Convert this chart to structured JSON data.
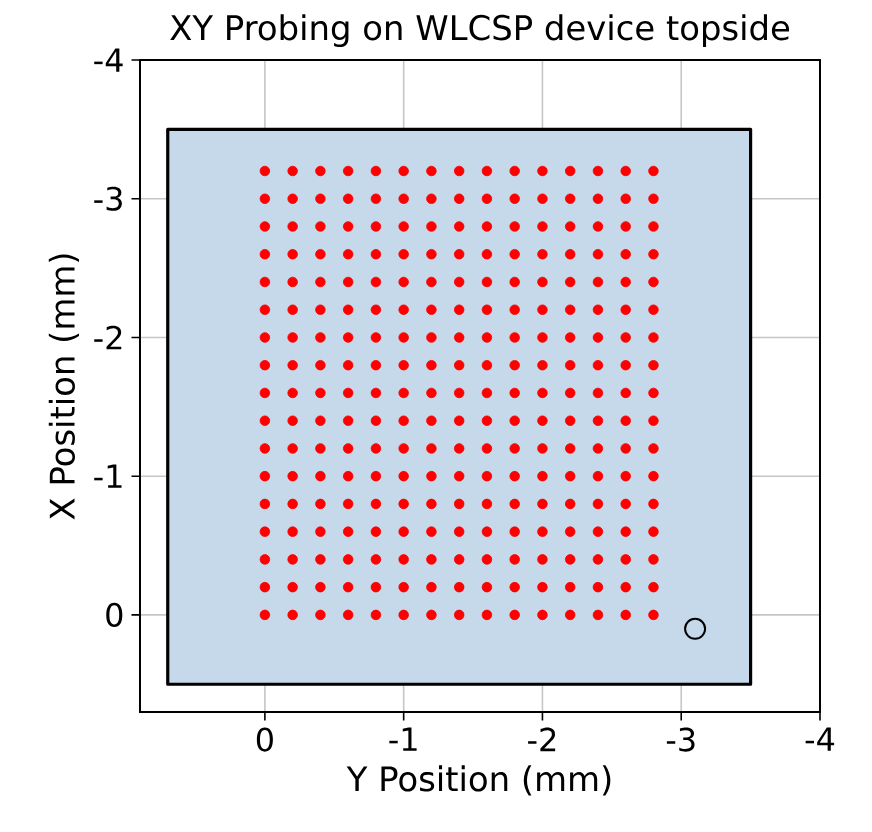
{
  "chart_data": {
    "type": "scatter",
    "title": "XY Probing on WLCSP device topside",
    "xlabel": "Y Position (mm)",
    "ylabel": "X Position (mm)",
    "xlim": [
      0.9,
      -4
    ],
    "ylim": [
      0.7,
      -4
    ],
    "xticks": [
      0,
      -1,
      -2,
      -3,
      -4
    ],
    "yticks": [
      0,
      -1,
      -2,
      -3,
      -4
    ],
    "grid": true,
    "series": [
      {
        "type": "area",
        "color": "#c5d9ea",
        "x": [
          0.7,
          -3.5,
          -3.5,
          0.7
        ],
        "values": [
          -3.5,
          -3.5,
          0.5,
          0.5
        ]
      },
      {
        "color": "#ff0000",
        "marker": "circle",
        "x": [
          0,
          -0.2,
          -0.4,
          -0.6,
          -0.8,
          -1,
          -1.2,
          -1.4,
          -1.6,
          -1.8,
          -2,
          -2.2,
          -2.4,
          -2.6,
          -2.8,
          0,
          -0.2,
          -0.4,
          -0.6,
          -0.8,
          -1,
          -1.2,
          -1.4,
          -1.6,
          -1.8,
          -2,
          -2.2,
          -2.4,
          -2.6,
          -2.8,
          0,
          -0.2,
          -0.4,
          -0.6,
          -0.8,
          -1,
          -1.2,
          -1.4,
          -1.6,
          -1.8,
          -2,
          -2.2,
          -2.4,
          -2.6,
          -2.8,
          0,
          -0.2,
          -0.4,
          -0.6,
          -0.8,
          -1,
          -1.2,
          -1.4,
          -1.6,
          -1.8,
          -2,
          -2.2,
          -2.4,
          -2.6,
          -2.8,
          0,
          -0.2,
          -0.4,
          -0.6,
          -0.8,
          -1,
          -1.2,
          -1.4,
          -1.6,
          -1.8,
          -2,
          -2.2,
          -2.4,
          -2.6,
          -2.8,
          0,
          -0.2,
          -0.4,
          -0.6,
          -0.8,
          -1,
          -1.2,
          -1.4,
          -1.6,
          -1.8,
          -2,
          -2.2,
          -2.4,
          -2.6,
          -2.8,
          0,
          -0.2,
          -0.4,
          -0.6,
          -0.8,
          -1,
          -1.2,
          -1.4,
          -1.6,
          -1.8,
          -2,
          -2.2,
          -2.4,
          -2.6,
          -2.8,
          0,
          -0.2,
          -0.4,
          -0.6,
          -0.8,
          -1,
          -1.2,
          -1.4,
          -1.6,
          -1.8,
          -2,
          -2.2,
          -2.4,
          -2.6,
          -2.8,
          0,
          -0.2,
          -0.4,
          -0.6,
          -0.8,
          -1,
          -1.2,
          -1.4,
          -1.6,
          -1.8,
          -2,
          -2.2,
          -2.4,
          -2.6,
          -2.8,
          0,
          -0.2,
          -0.4,
          -0.6,
          -0.8,
          -1,
          -1.2,
          -1.4,
          -1.6,
          -1.8,
          -2,
          -2.2,
          -2.4,
          -2.6,
          -2.8,
          0,
          -0.2,
          -0.4,
          -0.6,
          -0.8,
          -1,
          -1.2,
          -1.4,
          -1.6,
          -1.8,
          -2,
          -2.2,
          -2.4,
          -2.6,
          -2.8,
          0,
          -0.2,
          -0.4,
          -0.6,
          -0.8,
          -1,
          -1.2,
          -1.4,
          -1.6,
          -1.8,
          -2,
          -2.2,
          -2.4,
          -2.6,
          -2.8,
          0,
          -0.2,
          -0.4,
          -0.6,
          -0.8,
          -1,
          -1.2,
          -1.4,
          -1.6,
          -1.8,
          -2,
          -2.2,
          -2.4,
          -2.6,
          -2.8,
          0,
          -0.2,
          -0.4,
          -0.6,
          -0.8,
          -1,
          -1.2,
          -1.4,
          -1.6,
          -1.8,
          -2,
          -2.2,
          -2.4,
          -2.6,
          -2.8,
          0,
          -0.2,
          -0.4,
          -0.6,
          -0.8,
          -1,
          -1.2,
          -1.4,
          -1.6,
          -1.8,
          -2,
          -2.2,
          -2.4,
          -2.6,
          -2.8,
          0,
          -0.2,
          -0.4,
          -0.6,
          -0.8,
          -1,
          -1.2,
          -1.4,
          -1.6,
          -1.8,
          -2,
          -2.2,
          -2.4,
          -2.6,
          -2.8,
          0,
          -0.2,
          -0.4,
          -0.6,
          -0.8,
          -1,
          -1.2,
          -1.4,
          -1.6,
          -1.8,
          -2,
          -2.2,
          -2.4,
          -2.6,
          -2.8
        ],
        "values": [
          0,
          0,
          0,
          0,
          0,
          0,
          0,
          0,
          0,
          0,
          0,
          0,
          0,
          0,
          0,
          -0.2,
          -0.2,
          -0.2,
          -0.2,
          -0.2,
          -0.2,
          -0.2,
          -0.2,
          -0.2,
          -0.2,
          -0.2,
          -0.2,
          -0.2,
          -0.2,
          -0.2,
          -0.4,
          -0.4,
          -0.4,
          -0.4,
          -0.4,
          -0.4,
          -0.4,
          -0.4,
          -0.4,
          -0.4,
          -0.4,
          -0.4,
          -0.4,
          -0.4,
          -0.4,
          -0.6,
          -0.6,
          -0.6,
          -0.6,
          -0.6,
          -0.6,
          -0.6,
          -0.6,
          -0.6,
          -0.6,
          -0.6,
          -0.6,
          -0.6,
          -0.6,
          -0.6,
          -0.8,
          -0.8,
          -0.8,
          -0.8,
          -0.8,
          -0.8,
          -0.8,
          -0.8,
          -0.8,
          -0.8,
          -0.8,
          -0.8,
          -0.8,
          -0.8,
          -0.8,
          -1,
          -1,
          -1,
          -1,
          -1,
          -1,
          -1,
          -1,
          -1,
          -1,
          -1,
          -1,
          -1,
          -1,
          -1,
          -1.2,
          -1.2,
          -1.2,
          -1.2,
          -1.2,
          -1.2,
          -1.2,
          -1.2,
          -1.2,
          -1.2,
          -1.2,
          -1.2,
          -1.2,
          -1.2,
          -1.2,
          -1.4,
          -1.4,
          -1.4,
          -1.4,
          -1.4,
          -1.4,
          -1.4,
          -1.4,
          -1.4,
          -1.4,
          -1.4,
          -1.4,
          -1.4,
          -1.4,
          -1.4,
          -1.6,
          -1.6,
          -1.6,
          -1.6,
          -1.6,
          -1.6,
          -1.6,
          -1.6,
          -1.6,
          -1.6,
          -1.6,
          -1.6,
          -1.6,
          -1.6,
          -1.6,
          -1.8,
          -1.8,
          -1.8,
          -1.8,
          -1.8,
          -1.8,
          -1.8,
          -1.8,
          -1.8,
          -1.8,
          -1.8,
          -1.8,
          -1.8,
          -1.8,
          -1.8,
          -2,
          -2,
          -2,
          -2,
          -2,
          -2,
          -2,
          -2,
          -2,
          -2,
          -2,
          -2,
          -2,
          -2,
          -2,
          -2.2,
          -2.2,
          -2.2,
          -2.2,
          -2.2,
          -2.2,
          -2.2,
          -2.2,
          -2.2,
          -2.2,
          -2.2,
          -2.2,
          -2.2,
          -2.2,
          -2.2,
          -2.4,
          -2.4,
          -2.4,
          -2.4,
          -2.4,
          -2.4,
          -2.4,
          -2.4,
          -2.4,
          -2.4,
          -2.4,
          -2.4,
          -2.4,
          -2.4,
          -2.4,
          -2.6,
          -2.6,
          -2.6,
          -2.6,
          -2.6,
          -2.6,
          -2.6,
          -2.6,
          -2.6,
          -2.6,
          -2.6,
          -2.6,
          -2.6,
          -2.6,
          -2.6,
          -2.8,
          -2.8,
          -2.8,
          -2.8,
          -2.8,
          -2.8,
          -2.8,
          -2.8,
          -2.8,
          -2.8,
          -2.8,
          -2.8,
          -2.8,
          -2.8,
          -2.8,
          -3,
          -3,
          -3,
          -3,
          -3,
          -3,
          -3,
          -3,
          -3,
          -3,
          -3,
          -3,
          -3,
          -3,
          -3,
          -3.2,
          -3.2,
          -3.2,
          -3.2,
          -3.2,
          -3.2,
          -3.2,
          -3.2,
          -3.2,
          -3.2,
          -3.2,
          -3.2,
          -3.2,
          -3.2,
          -3.2
        ]
      },
      {
        "type": "scatter",
        "color": "#000000",
        "marker": "circle",
        "x": [
          -3.1
        ],
        "values": [
          0.1
        ]
      }
    ]
  }
}
